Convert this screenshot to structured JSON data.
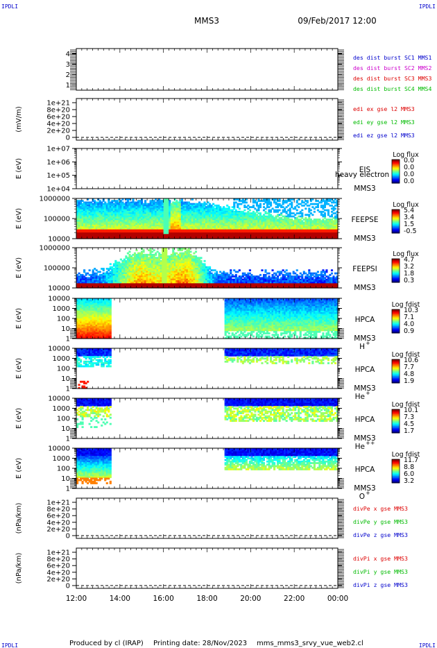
{
  "header": {
    "corner_label": "IPDLI",
    "spacecraft": "MMS3",
    "datetime": "09/Feb/2017 12:00"
  },
  "footer": {
    "produced_by": "Produced by cl (IRAP)",
    "printing_date": "Printing date: 28/Nov/2023",
    "filename": "mms_mms3_srvy_vue_web2.cl"
  },
  "colors": {
    "blue": "#0000cc",
    "magenta": "#cc00cc",
    "red": "#dd0000",
    "green": "#00bb00",
    "frame": "#000000"
  },
  "chart_data": [
    {
      "type": "line",
      "ylim": [
        0.5,
        4.5
      ],
      "y_ticks": [
        "1",
        "2",
        "3",
        "4"
      ],
      "legend": [
        {
          "text": "des dist burst SC1 MMS1",
          "color": "#0000cc"
        },
        {
          "text": "des dist burst SC2 MMS2",
          "color": "#cc00cc"
        },
        {
          "text": "des dist burst SC3 MMS3",
          "color": "#dd0000"
        },
        {
          "text": "des dist burst SC4 MMS4",
          "color": "#00bb00"
        }
      ]
    },
    {
      "type": "line",
      "ylabel": "(mV/m)",
      "y_ticks": [
        "0",
        "2e+20",
        "4e+20",
        "6e+20",
        "8e+20",
        "1e+21"
      ],
      "legend": [
        {
          "text": "edi ex gse l2 MMS3",
          "color": "#dd0000"
        },
        {
          "text": "edi ey gse l2 MMS3",
          "color": "#00bb00"
        },
        {
          "text": "edi ez gse l2 MMS3",
          "color": "#0000cc"
        }
      ]
    },
    {
      "type": "heatmap",
      "ylabel": "E (eV)",
      "y_ticks": [
        "1e+04",
        "1e+05",
        "1e+06",
        "1e+07"
      ],
      "instrument": "EIS",
      "species_overflow": "heavy electron to",
      "spacecraft": "MMS3",
      "colorbar_title": "Log flux",
      "colorbar_ticks": [
        "0.0",
        "0.0",
        "0.0",
        "0.0"
      ],
      "empty": true
    },
    {
      "type": "heatmap",
      "ylabel": "E (eV)",
      "y_ticks": [
        "10000",
        "100000",
        "1000000"
      ],
      "instrument": "FEEPSE",
      "spacecraft": "MMS3",
      "colorbar_title": "Log flux",
      "colorbar_ticks": [
        "5.4",
        "3.4",
        "1.5",
        "-0.5"
      ],
      "variant": "feepse"
    },
    {
      "type": "heatmap",
      "ylabel": "E (eV)",
      "y_ticks": [
        "10000",
        "100000",
        "1000000"
      ],
      "instrument": "FEEPSI",
      "spacecraft": "MMS3",
      "colorbar_title": "Log flux",
      "colorbar_ticks": [
        "4.7",
        "3.2",
        "1.8",
        "0.3"
      ],
      "variant": "feepsi"
    },
    {
      "type": "heatmap",
      "ylabel": "E (eV)",
      "y_ticks": [
        "1",
        "10",
        "100",
        "1000",
        "10000"
      ],
      "instrument": "HPCA",
      "spacecraft": "MMS3",
      "species": "H",
      "species_charge": "+",
      "colorbar_title": "Log fdist",
      "colorbar_ticks": [
        "10.3",
        "7.1",
        "4.0",
        "0.9"
      ],
      "variant": "hplus"
    },
    {
      "type": "heatmap",
      "ylabel": "E (eV)",
      "y_ticks": [
        "1",
        "10",
        "100",
        "1000",
        "10000"
      ],
      "instrument": "HPCA",
      "spacecraft": "MMS3",
      "species": "He",
      "species_charge": "+",
      "colorbar_title": "Log fdist",
      "colorbar_ticks": [
        "10.6",
        "7.7",
        "4.8",
        "1.9"
      ],
      "variant": "heplus"
    },
    {
      "type": "heatmap",
      "ylabel": "E (eV)",
      "y_ticks": [
        "1",
        "10",
        "100",
        "1000",
        "10000"
      ],
      "instrument": "HPCA",
      "spacecraft": "MMS3",
      "species": "He",
      "species_charge": "++",
      "colorbar_title": "Log fdist",
      "colorbar_ticks": [
        "10.1",
        "7.3",
        "4.5",
        "1.7"
      ],
      "variant": "heplusplus"
    },
    {
      "type": "heatmap",
      "ylabel": "E (eV)",
      "y_ticks": [
        "1",
        "10",
        "100",
        "1000",
        "10000"
      ],
      "instrument": "HPCA",
      "spacecraft": "MMS3",
      "species": "O",
      "species_charge": "+",
      "colorbar_title": "Log fdist",
      "colorbar_ticks": [
        "11.7",
        "8.8",
        "6.0",
        "3.2"
      ],
      "variant": "oplus"
    },
    {
      "type": "line",
      "ylabel": "(nPa/km)",
      "y_ticks": [
        "0",
        "2e+20",
        "4e+20",
        "6e+20",
        "8e+20",
        "1e+21"
      ],
      "legend": [
        {
          "text": "divPe x gse MMS3",
          "color": "#dd0000"
        },
        {
          "text": "divPe y gse MMS3",
          "color": "#00bb00"
        },
        {
          "text": "divPe z gse MMS3",
          "color": "#0000cc"
        }
      ]
    },
    {
      "type": "line",
      "ylabel": "(nPa/km)",
      "y_ticks": [
        "0",
        "2e+20",
        "4e+20",
        "6e+20",
        "8e+20",
        "1e+21"
      ],
      "legend": [
        {
          "text": "divPi x gse MMS3",
          "color": "#dd0000"
        },
        {
          "text": "divPi y gse MMS3",
          "color": "#00bb00"
        },
        {
          "text": "divPi z gse MMS3",
          "color": "#0000cc"
        }
      ]
    }
  ],
  "time_axis": {
    "range": [
      "12:00",
      "00:00"
    ],
    "tick_labels": [
      "12:00",
      "14:00",
      "16:00",
      "18:00",
      "20:00",
      "22:00",
      "00:00"
    ]
  }
}
